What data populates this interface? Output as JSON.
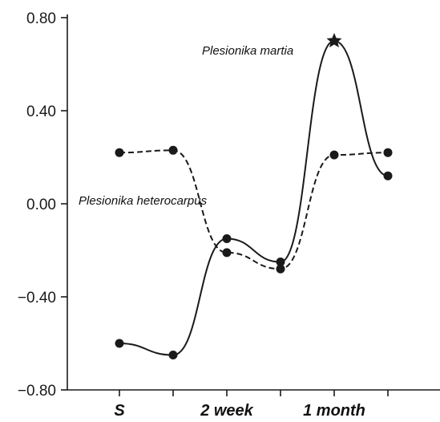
{
  "chart_data": {
    "type": "line",
    "categories": [
      "S",
      "",
      "2 week",
      "",
      "1 month",
      ""
    ],
    "ylim": [
      -0.8,
      0.8
    ],
    "yticks": [
      -0.8,
      -0.4,
      0.0,
      0.4,
      0.8
    ],
    "ytick_labels": [
      "−0.80",
      "−0.40",
      "0.00",
      "0.40",
      "0.80"
    ],
    "series": [
      {
        "name": "Plesionika martia",
        "line_style": "solid",
        "values": [
          -0.6,
          -0.65,
          -0.15,
          -0.25,
          0.7,
          0.12
        ],
        "marker_highlight_index": 4
      },
      {
        "name": "Plesionika heterocarpus",
        "line_style": "dashed",
        "values": [
          0.22,
          0.23,
          -0.21,
          -0.28,
          0.21,
          0.22
        ]
      }
    ],
    "grid": false,
    "colors": {
      "line": "#1a1a1a",
      "axis": "#1a1a1a"
    }
  }
}
